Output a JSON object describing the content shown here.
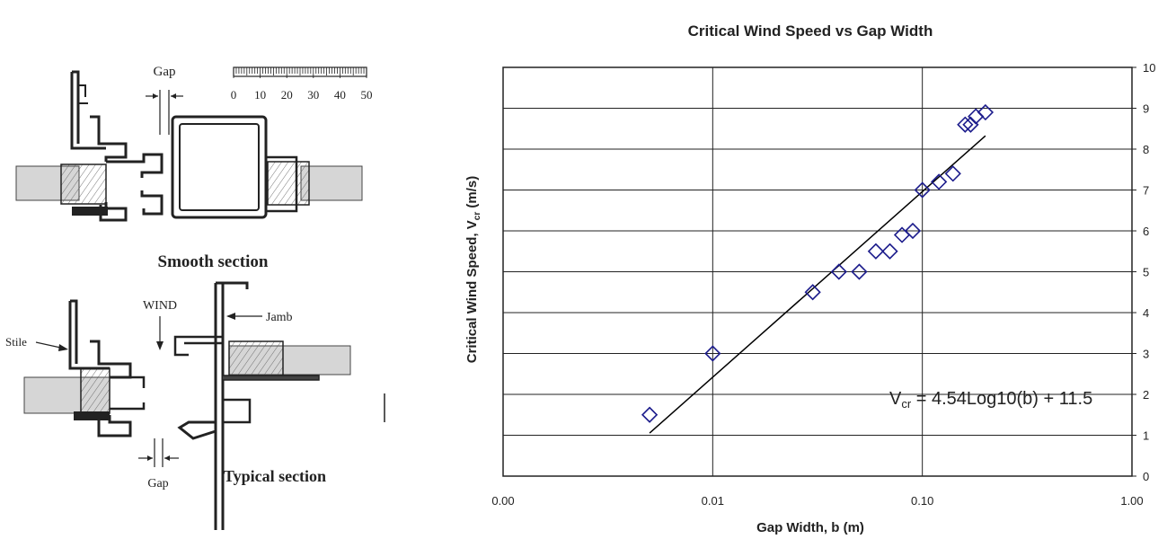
{
  "drawing": {
    "labels": {
      "gap_top": "Gap",
      "smooth_section": "Smooth section",
      "wind": "WIND",
      "jamb": "Jamb",
      "stile": "Stile",
      "gap_bottom": "Gap",
      "typical_section": "Typical section"
    },
    "scale_ticks": [
      "0",
      "10",
      "20",
      "30",
      "40",
      "50"
    ]
  },
  "chart_data": {
    "type": "scatter",
    "title": "Critical Wind Speed vs Gap Width",
    "xlabel": "Gap Width, b (m)",
    "ylabel_main": "Critical Wind Speed, V",
    "ylabel_sub": "cr",
    "ylabel_unit": " (m/s)",
    "x_scale": "log",
    "xlim": [
      0.001,
      1.0
    ],
    "ylim": [
      0,
      10
    ],
    "x_ticks": [
      0.001,
      0.01,
      0.1,
      1.0
    ],
    "x_tick_labels": [
      "0.00",
      "0.01",
      "0.10",
      "1.00"
    ],
    "y_ticks": [
      0,
      1,
      2,
      3,
      4,
      5,
      6,
      7,
      8,
      9,
      10
    ],
    "y_tick_labels": [
      "0",
      "1",
      "2",
      "3",
      "4",
      "5",
      "6",
      "7",
      "8",
      "9",
      "10"
    ],
    "y_axis_position": "right",
    "grid": true,
    "legend": "none",
    "series": [
      {
        "marker": "diamond",
        "color": "#1c1c8c",
        "x": [
          0.005,
          0.01,
          0.03,
          0.04,
          0.05,
          0.06,
          0.07,
          0.08,
          0.09,
          0.1,
          0.12,
          0.14,
          0.16,
          0.17,
          0.18,
          0.2
        ],
        "y": [
          1.5,
          3.0,
          4.5,
          5.0,
          5.0,
          5.5,
          5.5,
          5.9,
          6.0,
          7.0,
          7.2,
          7.4,
          8.6,
          8.6,
          8.8,
          8.9
        ]
      }
    ],
    "fit_line": {
      "equation_prefix": "V",
      "equation_sub": "cr",
      "equation_suffix": " = 4.54Log10(b) + 11.5",
      "slope": 4.54,
      "intercept": 11.5,
      "x_range": [
        0.005,
        0.2
      ],
      "color": "#000000"
    }
  }
}
